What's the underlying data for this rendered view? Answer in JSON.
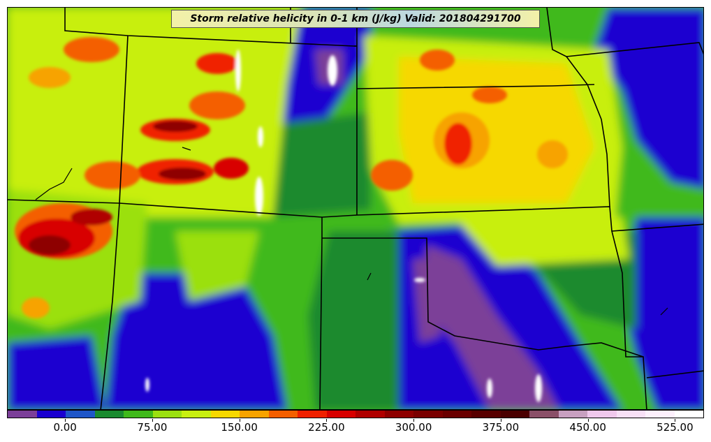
{
  "title": "Storm relative helicity in 0-1 km (J/kg) Valid: 201804291700",
  "colorbar": {
    "colors": [
      "#7b3f98",
      "#1a00d0",
      "#1f56c8",
      "#1a8a2f",
      "#3fb91a",
      "#9be010",
      "#c8ef10",
      "#f6d800",
      "#f7a300",
      "#f45f00",
      "#f02000",
      "#d80000",
      "#b00000",
      "#8e0000",
      "#7a0000",
      "#6a0000",
      "#580000",
      "#4a0000",
      "#8a5068",
      "#c8a0c0",
      "#f0c8ec",
      "#f8e0f6",
      "#fdf0fc",
      "#ffffff"
    ],
    "tick_labels": [
      "0.00",
      "75.00",
      "150.00",
      "225.00",
      "300.00",
      "375.00",
      "450.00",
      "525.00"
    ],
    "tick_values": [
      0,
      75,
      150,
      225,
      300,
      375,
      450,
      525
    ],
    "min": -50,
    "max": 550
  }
}
